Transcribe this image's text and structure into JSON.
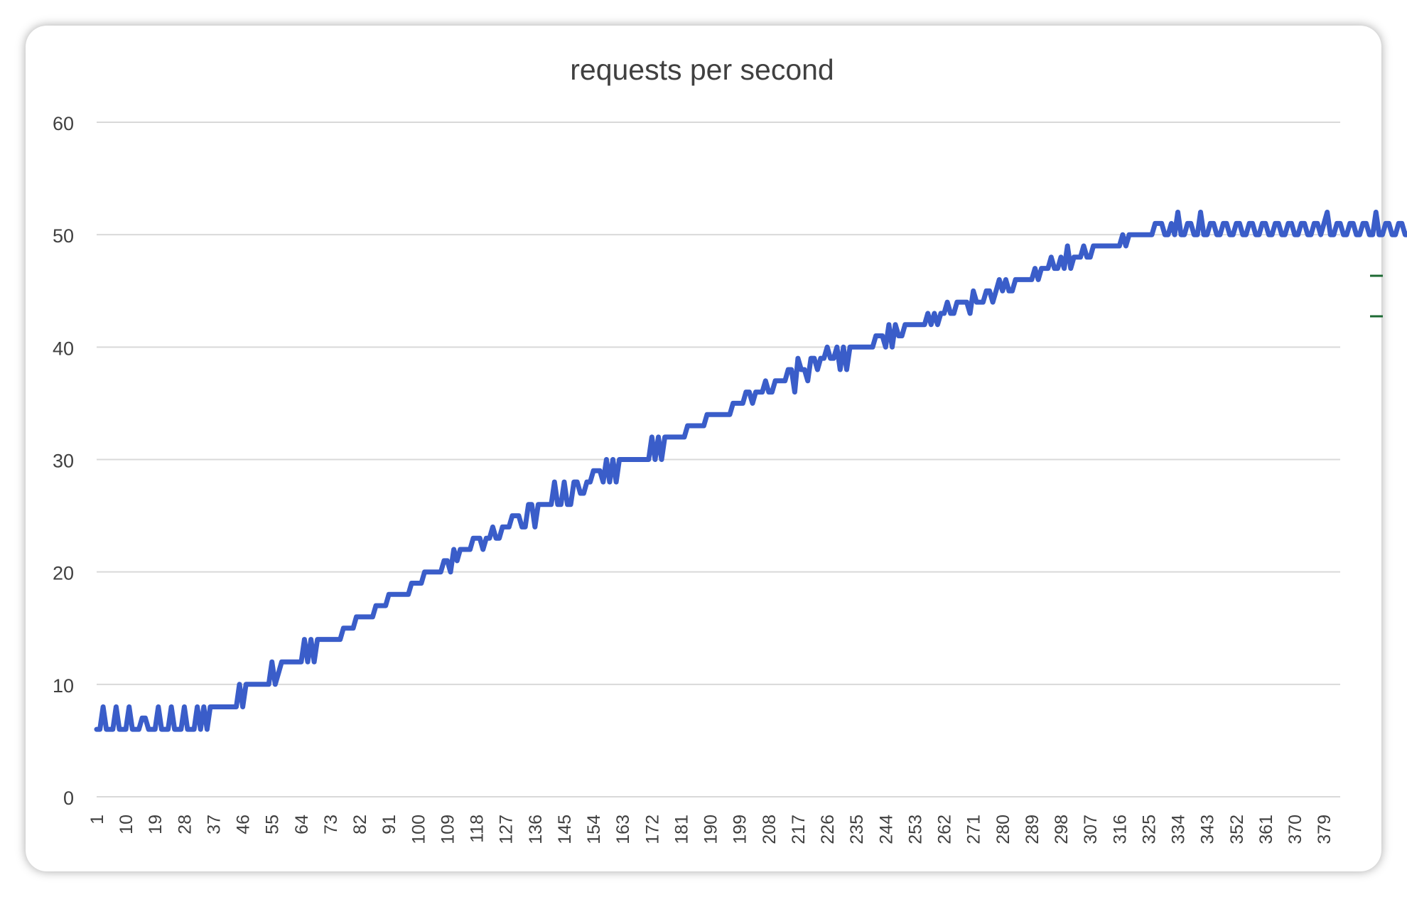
{
  "chart_data": {
    "type": "line",
    "title": "requests per second",
    "xlabel": "",
    "ylabel": "",
    "ylim": [
      0,
      60
    ],
    "yticks": [
      0,
      10,
      20,
      30,
      40,
      50,
      60
    ],
    "x_range": [
      1,
      384
    ],
    "xticks": [
      1,
      10,
      19,
      28,
      37,
      46,
      55,
      64,
      73,
      82,
      91,
      100,
      109,
      118,
      127,
      136,
      145,
      154,
      163,
      172,
      181,
      190,
      199,
      208,
      217,
      226,
      235,
      244,
      253,
      262,
      271,
      280,
      289,
      298,
      307,
      316,
      325,
      334,
      343,
      352,
      361,
      370,
      379
    ],
    "grid": true,
    "legend": "none",
    "series_color": "#3A5DC9",
    "series": [
      {
        "values": [
          6,
          6,
          8,
          6,
          6,
          6,
          8,
          6,
          6,
          6,
          8,
          6,
          6,
          6,
          7,
          7,
          6,
          6,
          6,
          8,
          6,
          6,
          6,
          8,
          6,
          6,
          6,
          8,
          6,
          6,
          6,
          8,
          6,
          8,
          6,
          8,
          8,
          8,
          8,
          8,
          8,
          8,
          8,
          8,
          10,
          8,
          10,
          10,
          10,
          10,
          10,
          10,
          10,
          10,
          12,
          10,
          11,
          12,
          12,
          12,
          12,
          12,
          12,
          12,
          14,
          12,
          14,
          12,
          14,
          14,
          14,
          14,
          14,
          14,
          14,
          14,
          15,
          15,
          15,
          15,
          16,
          16,
          16,
          16,
          16,
          16,
          17,
          17,
          17,
          17,
          18,
          18,
          18,
          18,
          18,
          18,
          18,
          19,
          19,
          19,
          19,
          20,
          20,
          20,
          20,
          20,
          20,
          21,
          21,
          20,
          22,
          21,
          22,
          22,
          22,
          22,
          23,
          23,
          23,
          22,
          23,
          23,
          24,
          23,
          23,
          24,
          24,
          24,
          25,
          25,
          25,
          24,
          24,
          26,
          26,
          24,
          26,
          26,
          26,
          26,
          26,
          28,
          26,
          26,
          28,
          26,
          26,
          28,
          28,
          27,
          27,
          28,
          28,
          29,
          29,
          29,
          28,
          30,
          28,
          30,
          28,
          30,
          30,
          30,
          30,
          30,
          30,
          30,
          30,
          30,
          30,
          32,
          30,
          32,
          30,
          32,
          32,
          32,
          32,
          32,
          32,
          32,
          33,
          33,
          33,
          33,
          33,
          33,
          34,
          34,
          34,
          34,
          34,
          34,
          34,
          34,
          35,
          35,
          35,
          35,
          36,
          36,
          35,
          36,
          36,
          36,
          37,
          36,
          36,
          37,
          37,
          37,
          37,
          38,
          38,
          36,
          39,
          38,
          38,
          37,
          39,
          39,
          38,
          39,
          39,
          40,
          39,
          39,
          40,
          38,
          40,
          38,
          40,
          40,
          40,
          40,
          40,
          40,
          40,
          40,
          41,
          41,
          41,
          40,
          42,
          40,
          42,
          41,
          41,
          42,
          42,
          42,
          42,
          42,
          42,
          42,
          43,
          42,
          43,
          42,
          43,
          43,
          44,
          43,
          43,
          44,
          44,
          44,
          44,
          43,
          45,
          44,
          44,
          44,
          45,
          45,
          44,
          45,
          46,
          45,
          46,
          45,
          45,
          46,
          46,
          46,
          46,
          46,
          46,
          47,
          46,
          47,
          47,
          47,
          48,
          47,
          47,
          48,
          47,
          49,
          47,
          48,
          48,
          48,
          49,
          48,
          48,
          49,
          49,
          49,
          49,
          49,
          49,
          49,
          49,
          49,
          50,
          49,
          50,
          50,
          50,
          50,
          50,
          50,
          50,
          50,
          51,
          51,
          51,
          50,
          50,
          51,
          50,
          52,
          50,
          50,
          51,
          51,
          50,
          50,
          52,
          50,
          50,
          51,
          51,
          50,
          50,
          51,
          51,
          50,
          50,
          51,
          51,
          50,
          50,
          51,
          51,
          50,
          50,
          51,
          51,
          50,
          50,
          51,
          51,
          50,
          50,
          51,
          51,
          50,
          50,
          51,
          51,
          50,
          50,
          51,
          51,
          50,
          51,
          52,
          50,
          50,
          51,
          51,
          50,
          50,
          51,
          51,
          50,
          50,
          51,
          51,
          50,
          50,
          52,
          50,
          50,
          51,
          51,
          50,
          50,
          51,
          51,
          50,
          50,
          51,
          51,
          50,
          50
        ]
      }
    ]
  }
}
